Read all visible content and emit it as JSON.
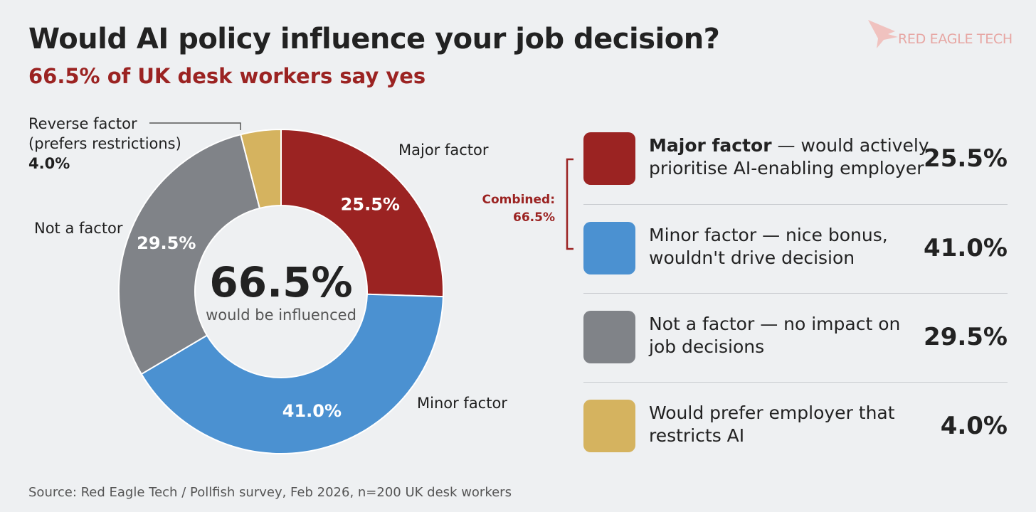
{
  "chart_data": {
    "type": "donut",
    "title": "Would AI policy influence your job decision?",
    "subtitle": "66.5% of UK desk workers say yes",
    "categories": [
      "Major factor",
      "Minor factor",
      "Not a factor",
      "Reverse factor (prefers restrictions)"
    ],
    "values": [
      25.5,
      41.0,
      29.5,
      4.0
    ],
    "value_labels": [
      "25.5%",
      "41.0%",
      "29.5%",
      "4.0%"
    ],
    "colors": [
      "#9b2322",
      "#4b91d1",
      "#808388",
      "#d5b35f"
    ],
    "center_value": "66.5%",
    "center_label": "would be influenced",
    "legend_details": [
      "— would actively prioritise AI-enabling employer",
      "Minor factor — nice bonus, wouldn't drive decision",
      "Not a factor — no impact on job decisions",
      "Would prefer employer that restricts AI"
    ],
    "annotation": {
      "label": "Combined:",
      "value": "66.5%"
    },
    "source": "Source: Red Eagle Tech / Pollfish survey, Feb 2026, n=200 UK desk workers",
    "brand": "RED EAGLE TECH"
  }
}
